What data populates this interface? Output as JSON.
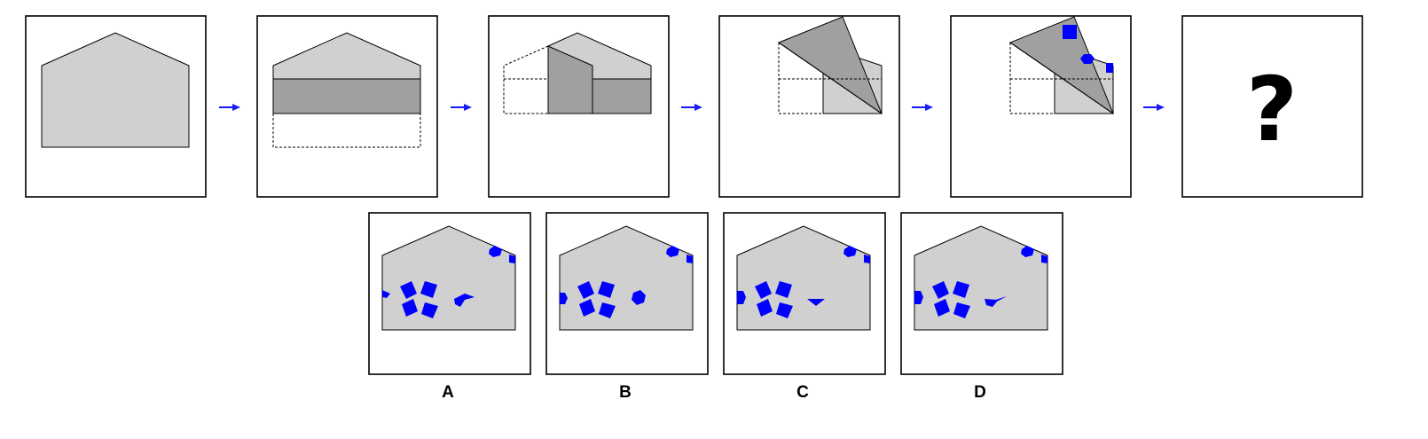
{
  "colors": {
    "paper": "#d0d0d0",
    "folded_paper": "#a0a0a0",
    "hole": "#0000ff",
    "arrow": "#1a1aff",
    "outline": "#000000"
  },
  "sequence": {
    "step_count": 6,
    "arrow_icon": "arrow-right-icon",
    "unknown_symbol": "?"
  },
  "options": [
    {
      "label": "A"
    },
    {
      "label": "B"
    },
    {
      "label": "C"
    },
    {
      "label": "D"
    }
  ]
}
